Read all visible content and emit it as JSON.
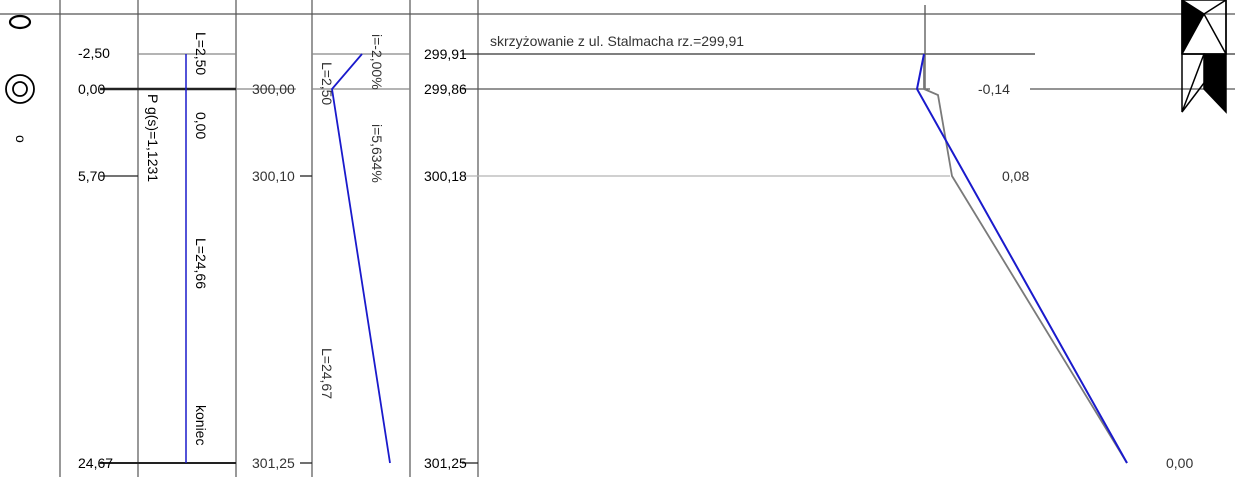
{
  "symbols": {
    "top_char": "O",
    "small_char": "o"
  },
  "stations": [
    "-2,50",
    "0,00",
    "5,70",
    "24,67"
  ],
  "column2": {
    "length_top": "L=2,50",
    "slope_label": "P g(s)=1,1231",
    "value_zero": "0,00",
    "length_main": "L=24,66",
    "end_label": "koniec"
  },
  "column3": {
    "elevations": [
      "300,00",
      "300,10",
      "301,25"
    ]
  },
  "column4": {
    "slope_top": "i=-2,00%",
    "length_top": "L=2,50",
    "slope_main": "i=5,634%",
    "length_main": "L=24,67"
  },
  "column5": {
    "elevations": [
      "299,91",
      "299,86",
      "300,18",
      "301,25"
    ]
  },
  "profile": {
    "intersection_label": "skrzyżowanie z ul. Stalmacha  rz.=299,91",
    "diffs": [
      "-0,14",
      "0,08",
      "0,00"
    ]
  },
  "colors": {
    "design_line": "#1a1acc",
    "terrain_line": "#7a7a7a",
    "light_line": "#b4b4b4",
    "grid": "#555555"
  }
}
